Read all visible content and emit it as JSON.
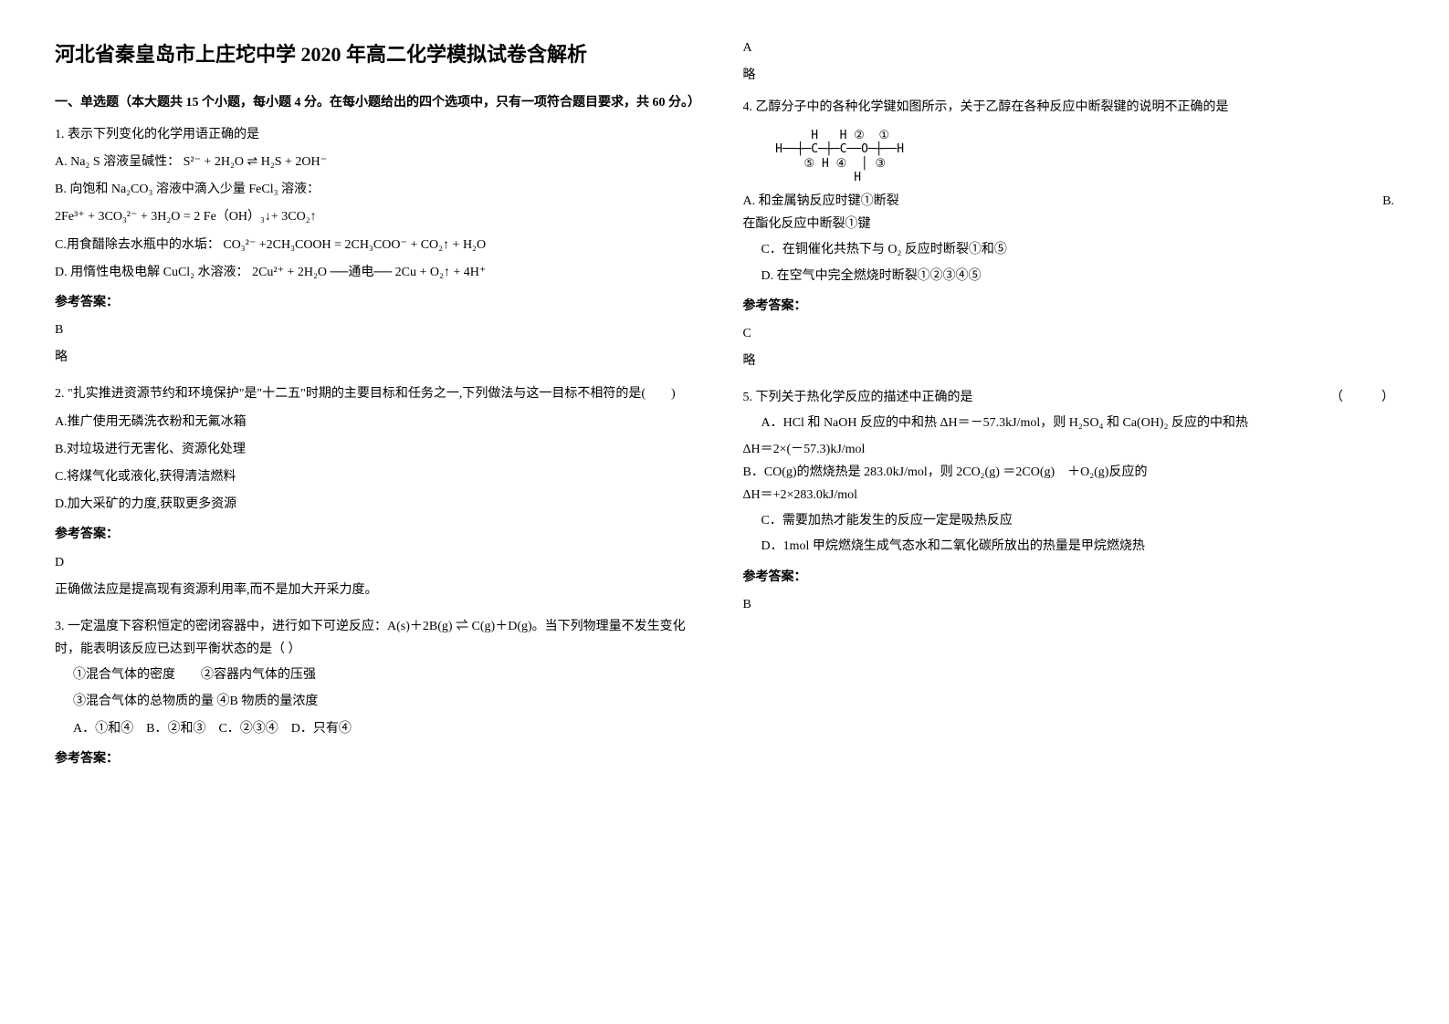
{
  "title": "河北省秦皇岛市上庄坨中学 2020 年高二化学模拟试卷含解析",
  "section1": {
    "header": "一、单选题（本大题共 15 个小题，每小题 4 分。在每小题给出的四个选项中，只有一项符合题目要求，共 60 分。）"
  },
  "q1": {
    "stem": "1. 表示下列变化的化学用语正确的是",
    "optA": "A. Na₂ S 溶液呈碱性：",
    "optA_formula": "S²⁻ + 2H₂O ⇌ H₂S + 2OH⁻",
    "optB": "B. 向饱和 Na₂CO₃ 溶液中滴入少量 FeCl₃ 溶液：",
    "optB_formula": "2Fe³⁺ + 3CO₃²⁻ + 3H₂O = 2 Fe（OH）₃↓+ 3CO₂↑",
    "optC": "C.用食醋除去水瓶中的水垢：",
    "optC_formula": "CO₃²⁻ +2CH₃COOH = 2CH₃COO⁻ + CO₂↑ + H₂O",
    "optD": "D. 用惰性电极电解 CuCl₂ 水溶液：",
    "optD_formula": "2Cu²⁺ + 2H₂O ──通电── 2Cu + O₂↑ + 4H⁺",
    "answer_label": "参考答案：",
    "answer": "B",
    "explanation": "略"
  },
  "q2": {
    "stem": "2. \"扎实推进资源节约和环境保护\"是\"十二五\"时期的主要目标和任务之一,下列做法与这一目标不相符的是(　　)",
    "optA": "A.推广使用无磷洗衣粉和无氟冰箱",
    "optB": "B.对垃圾进行无害化、资源化处理",
    "optC": "C.将煤气化或液化,获得清洁燃料",
    "optD": "D.加大采矿的力度,获取更多资源",
    "answer_label": "参考答案：",
    "answer": "D",
    "explanation": "正确做法应是提高现有资源利用率,而不是加大开采力度。"
  },
  "q3": {
    "stem": "3. 一定温度下容积恒定的密闭容器中，进行如下可逆反应：A(s)＋2B(g) ⇌ C(g)＋D(g)。当下列物理量不发生变化时，能表明该反应已达到平衡状态的是（ ）",
    "line1": "①混合气体的密度　　②容器内气体的压强",
    "line2": "③混合气体的总物质的量  ④B 物质的量浓度",
    "options": "A．①和④　B．②和③　C．②③④　D．只有④",
    "answer_label": "参考答案：",
    "answer": "A",
    "explanation": "略"
  },
  "q4": {
    "stem": "4. 乙醇分子中的各种化学键如图所示，关于乙醇在各种反应中断裂键的说明不正确的是",
    "diagram": "       H   H ②  ①\n  H──┼─C─┼─C──O─┼──H\n      ⑤ H ④  │ ③\n             H",
    "optA_inline": "A. 和金属钠反应时键①断裂",
    "optB_inline": "B.",
    "optB_cont": "在酯化反应中断裂①键",
    "optC": "C．在铜催化共热下与 O₂ 反应时断裂①和⑤",
    "optD": "D. 在空气中完全燃烧时断裂①②③④⑤",
    "answer_label": "参考答案：",
    "answer": "C",
    "explanation": "略"
  },
  "q5": {
    "stem": "5. 下列关于热化学反应的描述中正确的是",
    "bracket": "（　　　）",
    "optA": "A．HCl 和 NaOH 反应的中和热 ΔH＝－57.3kJ/mol，则 H₂SO₄ 和 Ca(OH)₂ 反应的中和热",
    "optA_cont": "ΔH＝2×(－57.3)kJ/mol",
    "optB": "B．CO(g)的燃烧热是 283.0kJ/mol，则 2CO₂(g) ＝2CO(g)　＋O₂(g)反应的",
    "optB_cont": "ΔH＝+2×283.0kJ/mol",
    "optC": "C．需要加热才能发生的反应一定是吸热反应",
    "optD": "D．1mol 甲烷燃烧生成气态水和二氧化碳所放出的热量是甲烷燃烧热",
    "answer_label": "参考答案：",
    "answer": "B"
  }
}
